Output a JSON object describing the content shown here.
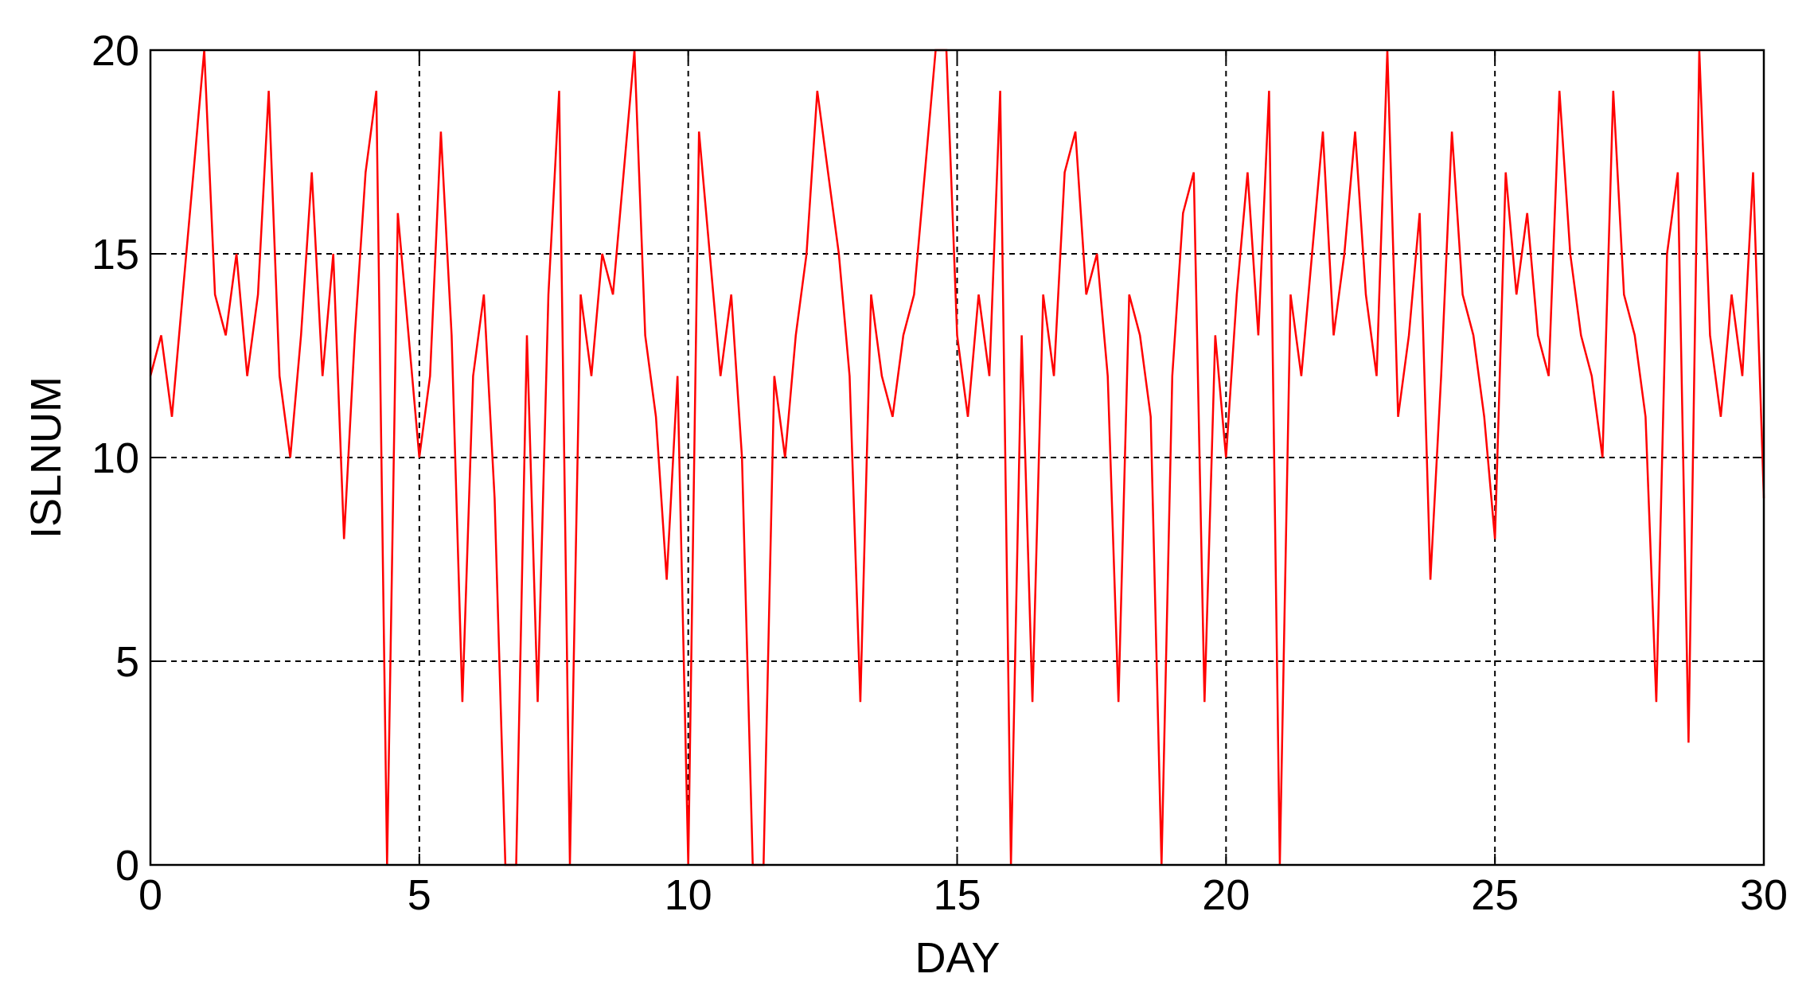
{
  "chart_data": {
    "type": "line",
    "xlabel": "DAY",
    "ylabel": "ISLNUM",
    "x": [
      0,
      0.2,
      0.4,
      0.6,
      0.8,
      1,
      1.2,
      1.4,
      1.6,
      1.8,
      2,
      2.2,
      2.4,
      2.6,
      2.8,
      3,
      3.2,
      3.4,
      3.6,
      3.8,
      4,
      4.2,
      4.4,
      4.6,
      4.8,
      5,
      5.2,
      5.4,
      5.6,
      5.8,
      6,
      6.2,
      6.4,
      6.6,
      6.8,
      7,
      7.2,
      7.4,
      7.6,
      7.8,
      8,
      8.2,
      8.4,
      8.6,
      8.8,
      9,
      9.2,
      9.4,
      9.6,
      9.8,
      10,
      10.2,
      10.4,
      10.6,
      10.8,
      11,
      11.2,
      11.4,
      11.6,
      11.8,
      12,
      12.2,
      12.4,
      12.6,
      12.8,
      13,
      13.2,
      13.4,
      13.6,
      13.8,
      14,
      14.2,
      14.4,
      14.6,
      14.8,
      15,
      15.2,
      15.4,
      15.6,
      15.8,
      16,
      16.2,
      16.4,
      16.6,
      16.8,
      17,
      17.2,
      17.4,
      17.6,
      17.8,
      18,
      18.2,
      18.4,
      18.6,
      18.8,
      19,
      19.2,
      19.4,
      19.6,
      19.8,
      20,
      20.2,
      20.4,
      20.6,
      20.8,
      21,
      21.2,
      21.4,
      21.6,
      21.8,
      22,
      22.2,
      22.4,
      22.6,
      22.8,
      23,
      23.2,
      23.4,
      23.6,
      23.8,
      24,
      24.2,
      24.4,
      24.6,
      24.8,
      25,
      25.2,
      25.4,
      25.6,
      25.8,
      26,
      26.2,
      26.4,
      26.6,
      26.8,
      27,
      27.2,
      27.4,
      27.6,
      27.8,
      28,
      28.2,
      28.4,
      28.6,
      28.8,
      29,
      29.2,
      29.4,
      29.6,
      29.8,
      30
    ],
    "series": [
      {
        "color": "#ff0000",
        "values": [
          12,
          13,
          11,
          14,
          17,
          20,
          14,
          13,
          15,
          12,
          14,
          19,
          12,
          10,
          13,
          17,
          12,
          15,
          8,
          13,
          17,
          19,
          0,
          16,
          13,
          10,
          12,
          18,
          13,
          4,
          12,
          14,
          9,
          0,
          0,
          13,
          4,
          14,
          19,
          0,
          14,
          12,
          15,
          14,
          17,
          20,
          13,
          11,
          7,
          12,
          0,
          18,
          15,
          12,
          14,
          10,
          0,
          0,
          12,
          10,
          13,
          15,
          19,
          17,
          15,
          12,
          4,
          14,
          12,
          11,
          13,
          14,
          17,
          20,
          20,
          13,
          11,
          14,
          12,
          19,
          0,
          13,
          4,
          14,
          12,
          17,
          18,
          14,
          15,
          12,
          4,
          14,
          13,
          11,
          0,
          12,
          16,
          17,
          4,
          13,
          10,
          14,
          17,
          13,
          19,
          0,
          14,
          12,
          15,
          18,
          13,
          15,
          18,
          14,
          12,
          20,
          11,
          13,
          16,
          7,
          12,
          18,
          14,
          13,
          11,
          8,
          17,
          14,
          16,
          13,
          12,
          19,
          15,
          13,
          12,
          10,
          19,
          14,
          13,
          11,
          4,
          15,
          17,
          3,
          20,
          13,
          11,
          14,
          12,
          17,
          9
        ]
      }
    ],
    "xlim": [
      0,
      30
    ],
    "xticks": [
      0,
      5,
      10,
      15,
      20,
      25,
      30
    ],
    "ylim": [
      0,
      20
    ],
    "yticks": [
      0,
      5,
      10,
      15,
      20
    ],
    "grid": true
  }
}
